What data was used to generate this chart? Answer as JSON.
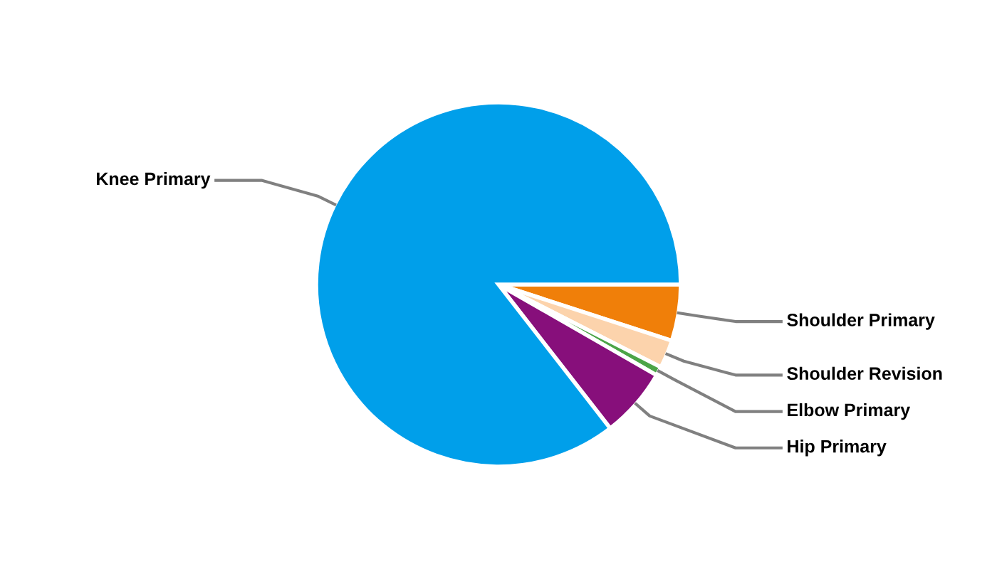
{
  "chart_data": {
    "type": "pie",
    "categories": [
      "Shoulder Primary",
      "Shoulder Revision",
      "Elbow Primary",
      "Hip Primary",
      "Knee Primary"
    ],
    "values": [
      5,
      2.5,
      0.8,
      6.2,
      85.5
    ],
    "colors": [
      "#f07f09",
      "#fcd3ac",
      "#4ca447",
      "#870f7b",
      "#009fea"
    ],
    "legend": false
  }
}
